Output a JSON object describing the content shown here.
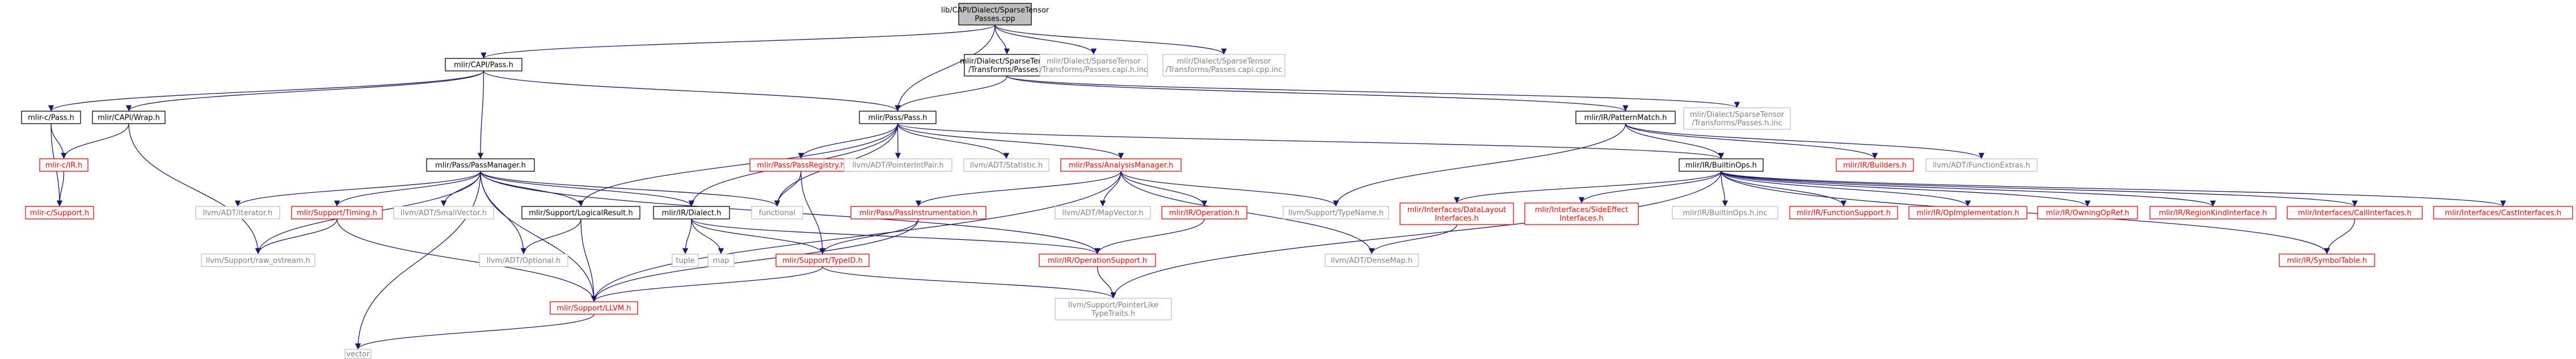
{
  "graph": {
    "nodes": [
      {
        "id": "root",
        "lines": [
          "lib/CAPI/Dialect/SparseTensor",
          "Passes.cpp"
        ],
        "style": "root"
      },
      {
        "id": "capi_pass",
        "lines": [
          "mlir/CAPI/Pass.h"
        ],
        "style": "normal"
      },
      {
        "id": "st_passes",
        "lines": [
          "mlir/Dialect/SparseTensor",
          "/Transforms/Passes.h"
        ],
        "style": "normal"
      },
      {
        "id": "st_capi_h_inc",
        "lines": [
          "mlir/Dialect/SparseTensor",
          "/Transforms/Passes.capi.h.inc"
        ],
        "style": "grey"
      },
      {
        "id": "st_capi_cpp_inc",
        "lines": [
          "mlir/Dialect/SparseTensor",
          "/Transforms/Passes.capi.cpp.inc"
        ],
        "style": "grey"
      },
      {
        "id": "mlirc_pass",
        "lines": [
          "mlir-c/Pass.h"
        ],
        "style": "normal"
      },
      {
        "id": "capi_wrap",
        "lines": [
          "mlir/CAPI/Wrap.h"
        ],
        "style": "normal"
      },
      {
        "id": "pass_pass",
        "lines": [
          "mlir/Pass/Pass.h"
        ],
        "style": "normal"
      },
      {
        "id": "pattern_match",
        "lines": [
          "mlir/IR/PatternMatch.h"
        ],
        "style": "normal"
      },
      {
        "id": "st_passes_inc",
        "lines": [
          "mlir/Dialect/SparseTensor",
          "/Transforms/Passes.h.inc"
        ],
        "style": "grey"
      },
      {
        "id": "mlirc_ir",
        "lines": [
          "mlir-c/IR.h"
        ],
        "style": "red"
      },
      {
        "id": "pass_manager",
        "lines": [
          "mlir/Pass/PassManager.h"
        ],
        "style": "normal"
      },
      {
        "id": "pass_registry",
        "lines": [
          "mlir/Pass/PassRegistry.h"
        ],
        "style": "red"
      },
      {
        "id": "ptrintpair",
        "lines": [
          "llvm/ADT/PointerIntPair.h"
        ],
        "style": "grey"
      },
      {
        "id": "statistic",
        "lines": [
          "llvm/ADT/Statistic.h"
        ],
        "style": "grey"
      },
      {
        "id": "analysis_mgr",
        "lines": [
          "mlir/Pass/AnalysisManager.h"
        ],
        "style": "red"
      },
      {
        "id": "builtin_ops",
        "lines": [
          "mlir/IR/BuiltinOps.h"
        ],
        "style": "normal"
      },
      {
        "id": "builders",
        "lines": [
          "mlir/IR/Builders.h"
        ],
        "style": "red"
      },
      {
        "id": "func_extras",
        "lines": [
          "llvm/ADT/FunctionExtras.h"
        ],
        "style": "grey"
      },
      {
        "id": "mlirc_support",
        "lines": [
          "mlir-c/Support.h"
        ],
        "style": "red"
      },
      {
        "id": "iterator",
        "lines": [
          "llvm/ADT/iterator.h"
        ],
        "style": "grey"
      },
      {
        "id": "timing",
        "lines": [
          "mlir/Support/Timing.h"
        ],
        "style": "red"
      },
      {
        "id": "smallvector",
        "lines": [
          "llvm/ADT/SmallVector.h"
        ],
        "style": "grey"
      },
      {
        "id": "logical_result",
        "lines": [
          "mlir/Support/LogicalResult.h"
        ],
        "style": "normal"
      },
      {
        "id": "dialect",
        "lines": [
          "mlir/IR/Dialect.h"
        ],
        "style": "normal"
      },
      {
        "id": "functional",
        "lines": [
          "functional"
        ],
        "style": "grey"
      },
      {
        "id": "pass_instr",
        "lines": [
          "mlir/Pass/PassInstrumentation.h"
        ],
        "style": "red"
      },
      {
        "id": "mapvector",
        "lines": [
          "llvm/ADT/MapVector.h"
        ],
        "style": "grey"
      },
      {
        "id": "operation",
        "lines": [
          "mlir/IR/Operation.h"
        ],
        "style": "red"
      },
      {
        "id": "typename",
        "lines": [
          "llvm/Support/TypeName.h"
        ],
        "style": "grey"
      },
      {
        "id": "data_layout",
        "lines": [
          "mlir/Interfaces/DataLayout",
          "Interfaces.h"
        ],
        "style": "red"
      },
      {
        "id": "side_effect",
        "lines": [
          "mlir/Interfaces/SideEffect",
          "Interfaces.h"
        ],
        "style": "red"
      },
      {
        "id": "builtin_ops_inc",
        "lines": [
          "mlir/IR/BuiltinOps.h.inc"
        ],
        "style": "grey"
      },
      {
        "id": "func_support",
        "lines": [
          "mlir/IR/FunctionSupport.h"
        ],
        "style": "red"
      },
      {
        "id": "op_impl",
        "lines": [
          "mlir/IR/OpImplementation.h"
        ],
        "style": "red"
      },
      {
        "id": "owning_op_ref",
        "lines": [
          "mlir/IR/OwningOpRef.h"
        ],
        "style": "red"
      },
      {
        "id": "region_kind",
        "lines": [
          "mlir/IR/RegionKindInterface.h"
        ],
        "style": "red"
      },
      {
        "id": "call_if",
        "lines": [
          "mlir/Interfaces/CallInterfaces.h"
        ],
        "style": "red"
      },
      {
        "id": "cast_if",
        "lines": [
          "mlir/Interfaces/CastInterfaces.h"
        ],
        "style": "red"
      },
      {
        "id": "raw_ostream",
        "lines": [
          "llvm/Support/raw_ostream.h"
        ],
        "style": "grey"
      },
      {
        "id": "optional",
        "lines": [
          "llvm/ADT/Optional.h"
        ],
        "style": "grey"
      },
      {
        "id": "tuple",
        "lines": [
          "tuple"
        ],
        "style": "grey"
      },
      {
        "id": "map",
        "lines": [
          "map"
        ],
        "style": "grey"
      },
      {
        "id": "typeid",
        "lines": [
          "mlir/Support/TypeID.h"
        ],
        "style": "red"
      },
      {
        "id": "op_support",
        "lines": [
          "mlir/IR/OperationSupport.h"
        ],
        "style": "red"
      },
      {
        "id": "densemap",
        "lines": [
          "llvm/ADT/DenseMap.h"
        ],
        "style": "grey"
      },
      {
        "id": "symbol_table",
        "lines": [
          "mlir/IR/SymbolTable.h"
        ],
        "style": "red"
      },
      {
        "id": "support_llvm",
        "lines": [
          "mlir/Support/LLVM.h"
        ],
        "style": "red"
      },
      {
        "id": "ptrlike",
        "lines": [
          "llvm/Support/PointerLike",
          "TypeTraits.h"
        ],
        "style": "grey"
      },
      {
        "id": "vector",
        "lines": [
          "vector"
        ],
        "style": "grey"
      }
    ],
    "edges": [
      [
        "root",
        "capi_pass"
      ],
      [
        "root",
        "st_passes"
      ],
      [
        "root",
        "st_capi_h_inc"
      ],
      [
        "root",
        "st_capi_cpp_inc"
      ],
      [
        "root",
        "pass_pass"
      ],
      [
        "capi_pass",
        "mlirc_pass"
      ],
      [
        "capi_pass",
        "capi_wrap"
      ],
      [
        "capi_pass",
        "pass_pass"
      ],
      [
        "capi_pass",
        "pass_manager"
      ],
      [
        "st_passes",
        "pass_pass"
      ],
      [
        "st_passes",
        "pattern_match"
      ],
      [
        "st_passes",
        "st_passes_inc"
      ],
      [
        "mlirc_pass",
        "mlirc_ir"
      ],
      [
        "mlirc_pass",
        "mlirc_support"
      ],
      [
        "capi_wrap",
        "mlirc_ir"
      ],
      [
        "capi_wrap",
        "raw_ostream"
      ],
      [
        "mlirc_ir",
        "mlirc_support"
      ],
      [
        "pass_pass",
        "pass_registry"
      ],
      [
        "pass_pass",
        "ptrintpair"
      ],
      [
        "pass_pass",
        "statistic"
      ],
      [
        "pass_pass",
        "analysis_mgr"
      ],
      [
        "pass_pass",
        "builtin_ops"
      ],
      [
        "pass_pass",
        "logical_result"
      ],
      [
        "pass_pass",
        "dialect"
      ],
      [
        "pass_pass",
        "functional"
      ],
      [
        "pattern_match",
        "builtin_ops"
      ],
      [
        "pattern_match",
        "builders"
      ],
      [
        "pattern_match",
        "func_extras"
      ],
      [
        "pattern_match",
        "typename"
      ],
      [
        "pass_manager",
        "iterator"
      ],
      [
        "pass_manager",
        "timing"
      ],
      [
        "pass_manager",
        "smallvector"
      ],
      [
        "pass_manager",
        "logical_result"
      ],
      [
        "pass_manager",
        "dialect"
      ],
      [
        "pass_manager",
        "functional"
      ],
      [
        "pass_manager",
        "optional"
      ],
      [
        "pass_manager",
        "op_support"
      ],
      [
        "pass_manager",
        "raw_ostream"
      ],
      [
        "pass_manager",
        "support_llvm"
      ],
      [
        "pass_manager",
        "vector"
      ],
      [
        "pass_registry",
        "functional"
      ],
      [
        "pass_registry",
        "typeid"
      ],
      [
        "analysis_mgr",
        "pass_instr"
      ],
      [
        "analysis_mgr",
        "mapvector"
      ],
      [
        "analysis_mgr",
        "operation"
      ],
      [
        "analysis_mgr",
        "typename"
      ],
      [
        "analysis_mgr",
        "densemap"
      ],
      [
        "analysis_mgr",
        "support_llvm"
      ],
      [
        "builtin_ops",
        "data_layout"
      ],
      [
        "builtin_ops",
        "side_effect"
      ],
      [
        "builtin_ops",
        "builtin_ops_inc"
      ],
      [
        "builtin_ops",
        "func_support"
      ],
      [
        "builtin_ops",
        "op_impl"
      ],
      [
        "builtin_ops",
        "owning_op_ref"
      ],
      [
        "builtin_ops",
        "region_kind"
      ],
      [
        "builtin_ops",
        "call_if"
      ],
      [
        "builtin_ops",
        "cast_if"
      ],
      [
        "builtin_ops",
        "symbol_table"
      ],
      [
        "builtin_ops",
        "ptrlike"
      ],
      [
        "timing",
        "raw_ostream"
      ],
      [
        "timing",
        "support_llvm"
      ],
      [
        "logical_result",
        "optional"
      ],
      [
        "logical_result",
        "support_llvm"
      ],
      [
        "dialect",
        "tuple"
      ],
      [
        "dialect",
        "map"
      ],
      [
        "dialect",
        "typeid"
      ],
      [
        "dialect",
        "op_support"
      ],
      [
        "pass_instr",
        "typeid"
      ],
      [
        "pass_instr",
        "support_llvm"
      ],
      [
        "operation",
        "op_support"
      ],
      [
        "data_layout",
        "densemap"
      ],
      [
        "call_if",
        "symbol_table"
      ],
      [
        "typeid",
        "support_llvm"
      ],
      [
        "typeid",
        "ptrlike"
      ],
      [
        "op_support",
        "ptrlike"
      ],
      [
        "support_llvm",
        "vector"
      ]
    ]
  }
}
